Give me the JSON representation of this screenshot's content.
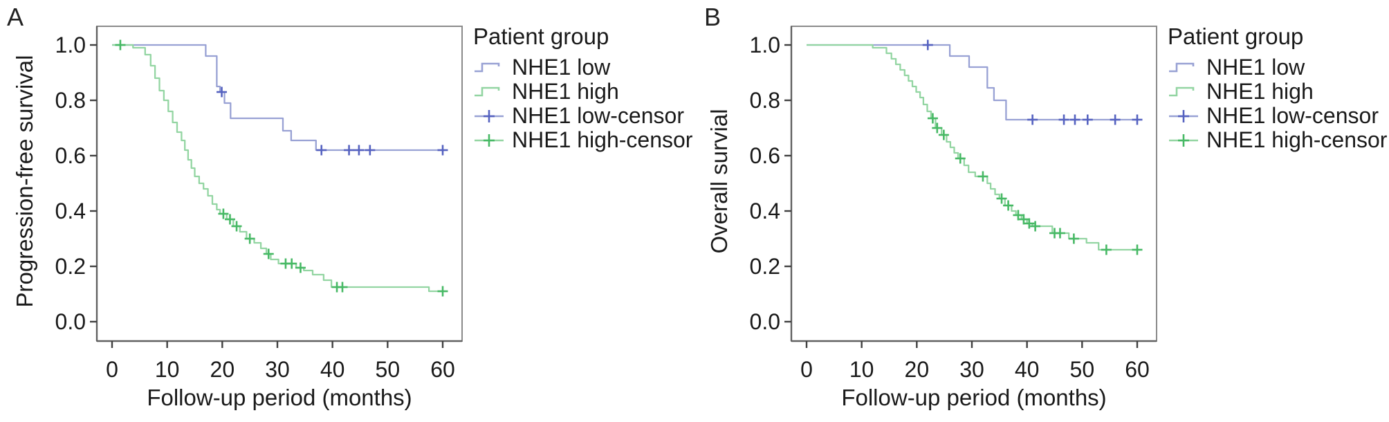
{
  "colors": {
    "blue_line": "#98a1d4",
    "blue_censor": "#5562c0",
    "green_line": "#93d5a2",
    "green_censor": "#47b965",
    "box": "#8a8a8a",
    "axis": "#606060",
    "tick": "#404040",
    "text": "#1a1a1a"
  },
  "panels": [
    {
      "letter": "A",
      "ylabel": "Progression-free survival",
      "xlabel": "Follow-up period (months)",
      "legend": {
        "title": "Patient group",
        "items": [
          {
            "label": "NHE1 low"
          },
          {
            "label": "NHE1 high"
          },
          {
            "label": "NHE1 low-censor"
          },
          {
            "label": "NHE1 high-censor"
          }
        ]
      }
    },
    {
      "letter": "B",
      "ylabel": "Overall survial",
      "xlabel": "Follow-up period (months)",
      "legend": {
        "title": "Patient group",
        "items": [
          {
            "label": "NHE1 low"
          },
          {
            "label": "NHE1 high"
          },
          {
            "label": "NHE1 low-censor"
          },
          {
            "label": "NHE1 high-censor"
          }
        ]
      }
    }
  ],
  "chart_data": [
    {
      "type": "line",
      "subtype": "kaplan-meier-step",
      "panel_label": "A",
      "xlabel": "Follow-up period (months)",
      "ylabel": "Progression-free survival",
      "xlim": [
        0,
        60
      ],
      "ylim": [
        0.0,
        1.0
      ],
      "x_ticks": [
        0,
        10,
        20,
        30,
        40,
        50,
        60
      ],
      "y_ticks": [
        0.0,
        0.2,
        0.4,
        0.6,
        0.8,
        1.0
      ],
      "grid": false,
      "legend_position": "right",
      "series": [
        {
          "name": "NHE1 low",
          "color": "#98a1d4",
          "censor_color": "#5562c0",
          "points": [
            [
              0,
              1.0
            ],
            [
              17,
              0.96
            ],
            [
              19,
              0.85
            ],
            [
              19.6,
              0.83
            ],
            [
              20.4,
              0.79
            ],
            [
              21.5,
              0.735
            ],
            [
              31,
              0.69
            ],
            [
              32.5,
              0.655
            ],
            [
              37,
              0.62
            ]
          ],
          "end_x": 60,
          "censors": [
            [
              19.9,
              0.83
            ],
            [
              38,
              0.62
            ],
            [
              43,
              0.62
            ],
            [
              44.8,
              0.62
            ],
            [
              46.8,
              0.62
            ],
            [
              60,
              0.62
            ]
          ]
        },
        {
          "name": "NHE1 high",
          "color": "#93d5a2",
          "censor_color": "#47b965",
          "points": [
            [
              0,
              1.0
            ],
            [
              3.8,
              0.99
            ],
            [
              6,
              0.965
            ],
            [
              7,
              0.925
            ],
            [
              7.8,
              0.88
            ],
            [
              8.6,
              0.835
            ],
            [
              9.4,
              0.8
            ],
            [
              10.2,
              0.76
            ],
            [
              11,
              0.72
            ],
            [
              11.8,
              0.685
            ],
            [
              12.6,
              0.655
            ],
            [
              13.2,
              0.62
            ],
            [
              13.8,
              0.585
            ],
            [
              14.4,
              0.555
            ],
            [
              15,
              0.525
            ],
            [
              15.8,
              0.5
            ],
            [
              16.6,
              0.48
            ],
            [
              17.4,
              0.455
            ],
            [
              18.2,
              0.425
            ],
            [
              19,
              0.405
            ],
            [
              19.6,
              0.39
            ],
            [
              20.8,
              0.37
            ],
            [
              22,
              0.345
            ],
            [
              23.2,
              0.325
            ],
            [
              24.4,
              0.3
            ],
            [
              25.8,
              0.285
            ],
            [
              27,
              0.265
            ],
            [
              28,
              0.245
            ],
            [
              28.8,
              0.225
            ],
            [
              30.2,
              0.21
            ],
            [
              33.4,
              0.195
            ],
            [
              34.8,
              0.185
            ],
            [
              36.4,
              0.17
            ],
            [
              38.4,
              0.15
            ],
            [
              39.8,
              0.125
            ],
            [
              57.5,
              0.11
            ]
          ],
          "end_x": 60,
          "censors": [
            [
              1.5,
              1.0
            ],
            [
              20.2,
              0.39
            ],
            [
              21.4,
              0.37
            ],
            [
              22.6,
              0.345
            ],
            [
              25,
              0.3
            ],
            [
              28.4,
              0.245
            ],
            [
              31.5,
              0.21
            ],
            [
              32.6,
              0.21
            ],
            [
              34.2,
              0.195
            ],
            [
              40.8,
              0.125
            ],
            [
              41.8,
              0.125
            ],
            [
              60,
              0.11
            ]
          ]
        }
      ]
    },
    {
      "type": "line",
      "subtype": "kaplan-meier-step",
      "panel_label": "B",
      "xlabel": "Follow-up period (months)",
      "ylabel": "Overall survial",
      "xlim": [
        0,
        60
      ],
      "ylim": [
        0.0,
        1.0
      ],
      "x_ticks": [
        0,
        10,
        20,
        30,
        40,
        50,
        60
      ],
      "y_ticks": [
        0.0,
        0.2,
        0.4,
        0.6,
        0.8,
        1.0
      ],
      "grid": false,
      "legend_position": "right",
      "series": [
        {
          "name": "NHE1 low",
          "color": "#98a1d4",
          "censor_color": "#5562c0",
          "points": [
            [
              0,
              1.0
            ],
            [
              26,
              0.96
            ],
            [
              29.5,
              0.92
            ],
            [
              32.8,
              0.845
            ],
            [
              34,
              0.8
            ],
            [
              36.2,
              0.73
            ]
          ],
          "end_x": 60,
          "censors": [
            [
              22,
              1.0
            ],
            [
              41,
              0.73
            ],
            [
              46.7,
              0.73
            ],
            [
              48.7,
              0.73
            ],
            [
              51,
              0.73
            ],
            [
              56,
              0.73
            ],
            [
              60,
              0.73
            ]
          ]
        },
        {
          "name": "NHE1 high",
          "color": "#93d5a2",
          "censor_color": "#47b965",
          "points": [
            [
              0,
              1.0
            ],
            [
              12,
              0.99
            ],
            [
              14.5,
              0.97
            ],
            [
              15.4,
              0.95
            ],
            [
              16.2,
              0.93
            ],
            [
              17,
              0.91
            ],
            [
              17.8,
              0.89
            ],
            [
              18.5,
              0.87
            ],
            [
              19.2,
              0.85
            ],
            [
              19.9,
              0.83
            ],
            [
              20.6,
              0.81
            ],
            [
              21.2,
              0.785
            ],
            [
              21.9,
              0.76
            ],
            [
              22.6,
              0.735
            ],
            [
              23.4,
              0.7
            ],
            [
              24.5,
              0.675
            ],
            [
              25.4,
              0.65
            ],
            [
              26.1,
              0.63
            ],
            [
              26.8,
              0.61
            ],
            [
              27.5,
              0.59
            ],
            [
              28.6,
              0.565
            ],
            [
              29.4,
              0.54
            ],
            [
              30.6,
              0.525
            ],
            [
              32.8,
              0.5
            ],
            [
              33.4,
              0.48
            ],
            [
              34.2,
              0.46
            ],
            [
              35,
              0.445
            ],
            [
              36,
              0.42
            ],
            [
              37.2,
              0.4
            ],
            [
              38,
              0.385
            ],
            [
              39,
              0.37
            ],
            [
              40,
              0.355
            ],
            [
              41,
              0.345
            ],
            [
              44.6,
              0.32
            ],
            [
              47.6,
              0.3
            ],
            [
              50.8,
              0.285
            ],
            [
              53,
              0.26
            ]
          ],
          "end_x": 60,
          "censors": [
            [
              22.9,
              0.735
            ],
            [
              23.7,
              0.7
            ],
            [
              24.9,
              0.675
            ],
            [
              27.9,
              0.59
            ],
            [
              32,
              0.525
            ],
            [
              35.4,
              0.445
            ],
            [
              36.6,
              0.42
            ],
            [
              38.4,
              0.385
            ],
            [
              39.4,
              0.37
            ],
            [
              40.4,
              0.355
            ],
            [
              41.5,
              0.345
            ],
            [
              45,
              0.32
            ],
            [
              46,
              0.32
            ],
            [
              48.5,
              0.3
            ],
            [
              54.4,
              0.26
            ],
            [
              60,
              0.26
            ]
          ]
        }
      ]
    }
  ]
}
